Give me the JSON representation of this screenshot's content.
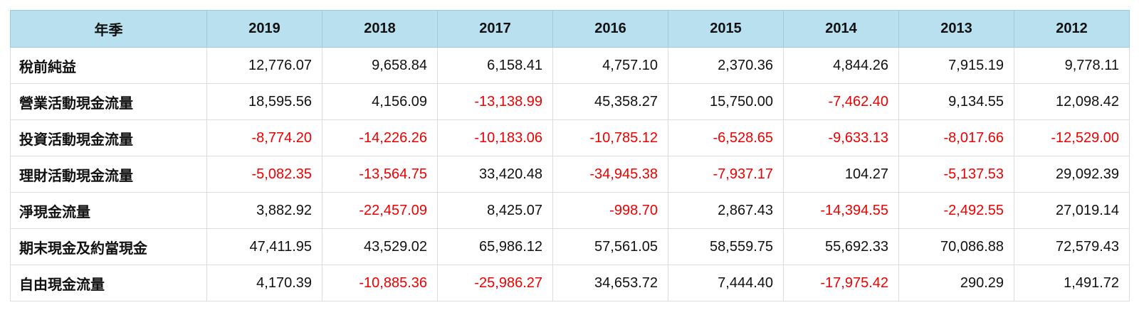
{
  "table": {
    "header": [
      "年季",
      "2019",
      "2018",
      "2017",
      "2016",
      "2015",
      "2014",
      "2013",
      "2012"
    ],
    "rows": [
      {
        "label": "稅前純益",
        "values": [
          "12,776.07",
          "9,658.84",
          "6,158.41",
          "4,757.10",
          "2,370.36",
          "4,844.26",
          "7,915.19",
          "9,778.11"
        ]
      },
      {
        "label": "營業活動現金流量",
        "values": [
          "18,595.56",
          "4,156.09",
          "-13,138.99",
          "45,358.27",
          "15,750.00",
          "-7,462.40",
          "9,134.55",
          "12,098.42"
        ]
      },
      {
        "label": "投資活動現金流量",
        "values": [
          "-8,774.20",
          "-14,226.26",
          "-10,183.06",
          "-10,785.12",
          "-6,528.65",
          "-9,633.13",
          "-8,017.66",
          "-12,529.00"
        ]
      },
      {
        "label": "理財活動現金流量",
        "values": [
          "-5,082.35",
          "-13,564.75",
          "33,420.48",
          "-34,945.38",
          "-7,937.17",
          "104.27",
          "-5,137.53",
          "29,092.39"
        ]
      },
      {
        "label": "淨現金流量",
        "values": [
          "3,882.92",
          "-22,457.09",
          "8,425.07",
          "-998.70",
          "2,867.43",
          "-14,394.55",
          "-2,492.55",
          "27,019.14"
        ]
      },
      {
        "label": "期末現金及約當現金",
        "values": [
          "47,411.95",
          "43,529.02",
          "65,986.12",
          "57,561.05",
          "58,559.75",
          "55,692.33",
          "70,086.88",
          "72,579.43"
        ]
      },
      {
        "label": "自由現金流量",
        "values": [
          "4,170.39",
          "-10,885.36",
          "-25,986.27",
          "34,653.72",
          "7,444.40",
          "-17,975.42",
          "290.29",
          "1,491.72"
        ]
      }
    ]
  },
  "colors": {
    "header_bg": "#b8e0ee",
    "negative": "#f00000",
    "text": "#111111",
    "border": "#dedede"
  }
}
